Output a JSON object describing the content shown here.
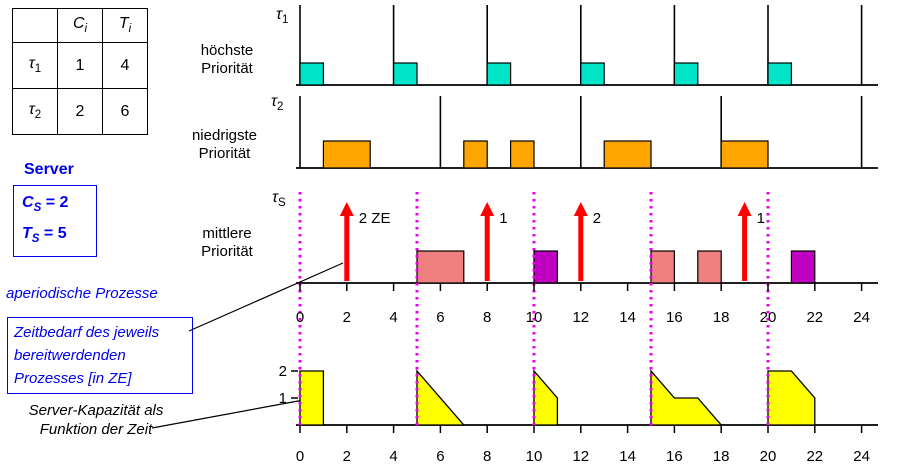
{
  "colors": {
    "accent_blue": "#0000EE",
    "task1_fill": "#00E5C8",
    "task2_fill": "#FFA500",
    "server_fill_light": "#F08080",
    "server_fill_dark": "#C000C0",
    "arrival_arrow": "#FF0000",
    "replenish_line": "#EE00EE",
    "capacity_fill": "#FFFF00"
  },
  "task_table": {
    "col_headers": [
      {
        "base": "C",
        "sub": "i"
      },
      {
        "base": "T",
        "sub": "i"
      }
    ],
    "rows": [
      {
        "name": {
          "base": "τ",
          "sub": "1"
        },
        "c": "1",
        "t": "4"
      },
      {
        "name": {
          "base": "τ",
          "sub": "2"
        },
        "c": "2",
        "t": "6"
      }
    ]
  },
  "server_info": {
    "title": "Server",
    "capacity": {
      "base": "C",
      "sub": "S",
      "rest": " = 2"
    },
    "period": {
      "base": "T",
      "sub": "S",
      "rest": " = 5"
    }
  },
  "annotations": {
    "aperiodic_label": "aperiodische Prozesse",
    "zeitbedarf_text": "Zeitbedarf des jeweils\nbereitwerdenden\nProzesses [in ZE]",
    "kapazitaet_text": "Server-Kapazität als\nFunktion der Zeit"
  },
  "timelines": {
    "tau1": {
      "label": {
        "base": "τ",
        "sub": "1"
      },
      "priority": "höchste\nPriorität",
      "release_ticks": [
        0,
        4,
        8,
        12,
        16,
        20,
        24
      ],
      "executions": [
        [
          0,
          1
        ],
        [
          4,
          5
        ],
        [
          8,
          9
        ],
        [
          12,
          13
        ],
        [
          16,
          17
        ],
        [
          20,
          21
        ]
      ]
    },
    "tau2": {
      "label": {
        "base": "τ",
        "sub": "2"
      },
      "priority": "niedrigste\nPriorität",
      "release_ticks": [
        0,
        6,
        12,
        18,
        24
      ],
      "executions": [
        [
          1,
          3
        ],
        [
          7,
          8
        ],
        [
          9,
          10
        ],
        [
          13,
          15
        ],
        [
          18,
          20
        ]
      ]
    },
    "server": {
      "label": {
        "base": "τ",
        "sub": "S"
      },
      "priority": "mittlere\nPriorität",
      "arrivals": [
        {
          "t": 2,
          "label": "2 ZE"
        },
        {
          "t": 8,
          "label": "1"
        },
        {
          "t": 12,
          "label": "2"
        },
        {
          "t": 19,
          "label": "1"
        }
      ],
      "executions": [
        {
          "span": [
            5,
            7
          ],
          "fill": "#F08080"
        },
        {
          "span": [
            10,
            11
          ],
          "fill": "#C000C0"
        },
        {
          "span": [
            15,
            16
          ],
          "fill": "#F08080"
        },
        {
          "span": [
            17,
            18
          ],
          "fill": "#F08080"
        },
        {
          "span": [
            21,
            22
          ],
          "fill": "#C000C0"
        }
      ],
      "replenish_times": [
        0,
        5,
        10,
        15,
        20
      ]
    }
  },
  "time_axis": {
    "min": 0,
    "max": 24,
    "tick_step": 2,
    "tick_labels": [
      "0",
      "2",
      "4",
      "6",
      "8",
      "10",
      "12",
      "14",
      "16",
      "18",
      "20",
      "22",
      "24"
    ]
  },
  "capacity_graph": {
    "y_ticks": [
      {
        "value": 2,
        "label": "2"
      },
      {
        "value": 1,
        "label": "1"
      }
    ],
    "shapes": [
      [
        [
          0,
          0
        ],
        [
          0,
          2
        ],
        [
          1,
          2
        ],
        [
          1,
          0
        ]
      ],
      [
        [
          5,
          0
        ],
        [
          5,
          2
        ],
        [
          7,
          0
        ]
      ],
      [
        [
          10,
          0
        ],
        [
          10,
          2
        ],
        [
          11,
          1
        ],
        [
          11,
          0
        ]
      ],
      [
        [
          15,
          0
        ],
        [
          15,
          2
        ],
        [
          16,
          1
        ],
        [
          17,
          1
        ],
        [
          18,
          0
        ]
      ],
      [
        [
          20,
          0
        ],
        [
          20,
          2
        ],
        [
          21,
          2
        ],
        [
          22,
          1
        ],
        [
          22,
          0
        ]
      ]
    ]
  }
}
